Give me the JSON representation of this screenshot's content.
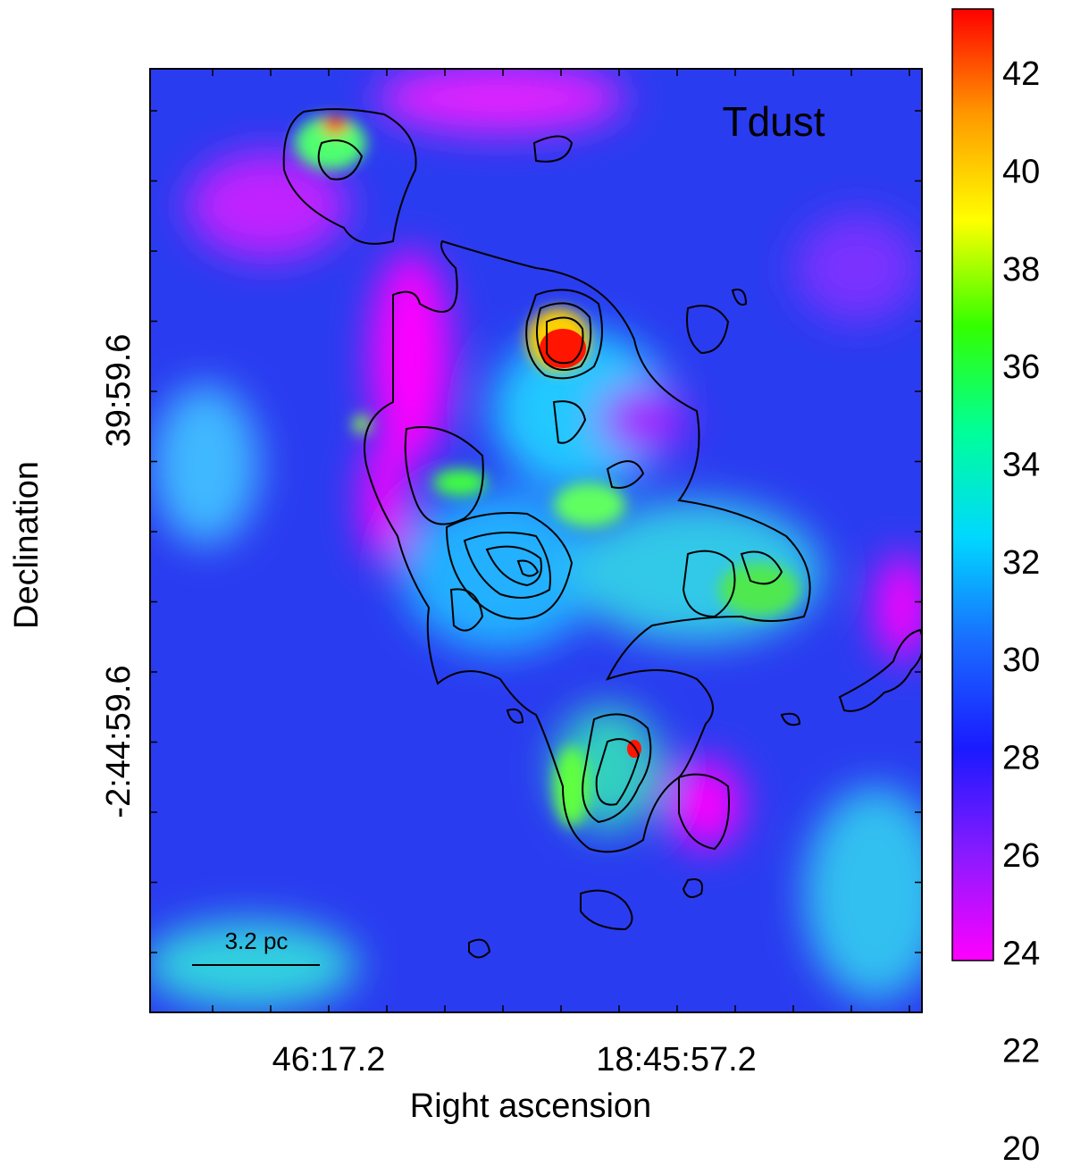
{
  "map": {
    "title": "Tdust",
    "x_label": "Right ascension",
    "y_label": "Declination",
    "x_tick_labels": [
      "46:17.2",
      "18:45:57.2"
    ],
    "y_tick_labels": [
      "39:59.6",
      "-2:44:59.6"
    ],
    "scale_bar": "3.2 pc",
    "colorbar": {
      "ticks": [
        20,
        22,
        24,
        26,
        28,
        30,
        32,
        34,
        36,
        38,
        40,
        42
      ],
      "colors": [
        "#ff00ff",
        "#8a1aff",
        "#1a1aff",
        "#1a6aff",
        "#00d8ff",
        "#00ff99",
        "#33ff00",
        "#ffff00",
        "#ff9900",
        "#ff0000"
      ]
    }
  }
}
